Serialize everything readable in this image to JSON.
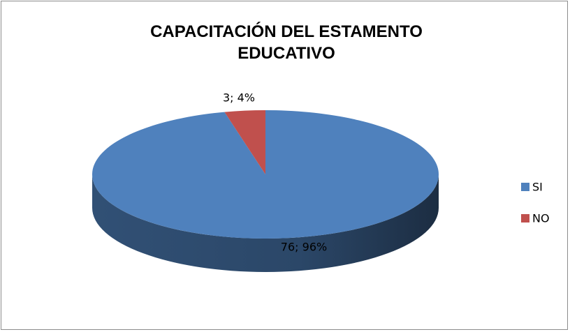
{
  "chart_data": {
    "type": "pie",
    "title": "CAPACITACIÓN DEL ESTAMENTO EDUCATIVO",
    "categories": [
      "SI",
      "NO"
    ],
    "values": [
      76,
      3
    ],
    "value_labels": [
      "76; 96%",
      "3; 4%"
    ],
    "colors": [
      "#4f81bd",
      "#c0504d"
    ],
    "legend": "right"
  }
}
